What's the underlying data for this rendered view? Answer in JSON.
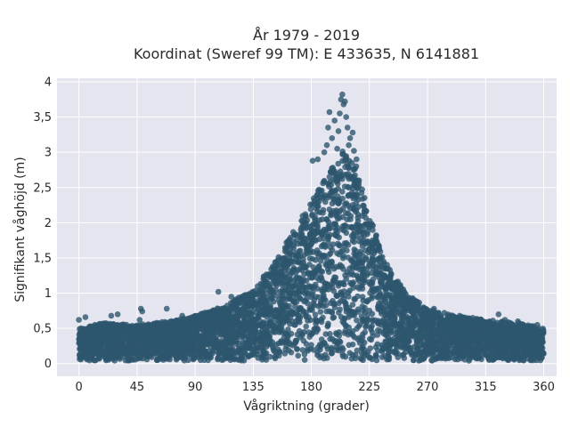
{
  "chart_data": {
    "type": "scatter",
    "title_line1": "År 1979 - 2019",
    "title_line2": "Koordinat (Sweref 99 TM): E 433635, N 6141881",
    "xlabel": "Vågriktning (grader)",
    "ylabel": "Signifikant våghöjd (m)",
    "xlim": [
      -17,
      370
    ],
    "ylim": [
      -0.18,
      4.05
    ],
    "xticks": [
      0,
      45,
      90,
      135,
      180,
      225,
      270,
      315,
      360
    ],
    "xtick_labels": [
      "0",
      "45",
      "90",
      "135",
      "180",
      "225",
      "270",
      "315",
      "360"
    ],
    "yticks": [
      0,
      0.5,
      1,
      1.5,
      2,
      2.5,
      3,
      3.5,
      4
    ],
    "ytick_labels": [
      "0",
      "0,5",
      "1",
      "1,5",
      "2",
      "2,5",
      "3",
      "3,5",
      "4"
    ],
    "grid": true,
    "colors": {
      "plot_bg": "#e5e5ef",
      "grid": "#ffffff",
      "marker": "#2d566e",
      "text": "#2a2a2a"
    },
    "envelope": {
      "x": [
        0,
        20,
        45,
        70,
        90,
        110,
        135,
        150,
        165,
        180,
        195,
        205,
        215,
        225,
        240,
        255,
        270,
        290,
        315,
        340,
        360
      ],
      "y_max": [
        0.5,
        0.58,
        0.55,
        0.6,
        0.68,
        0.8,
        1.05,
        1.4,
        1.85,
        2.3,
        2.75,
        3.05,
        2.8,
        2.1,
        1.35,
        0.98,
        0.78,
        0.68,
        0.62,
        0.58,
        0.5
      ]
    },
    "points_outliers": [
      {
        "x": 0,
        "y": 0.62
      },
      {
        "x": 5,
        "y": 0.66
      },
      {
        "x": 25,
        "y": 0.68
      },
      {
        "x": 30,
        "y": 0.7
      },
      {
        "x": 47,
        "y": 0.62
      },
      {
        "x": 48,
        "y": 0.78
      },
      {
        "x": 49,
        "y": 0.74
      },
      {
        "x": 68,
        "y": 0.78
      },
      {
        "x": 80,
        "y": 0.68
      },
      {
        "x": 108,
        "y": 1.02
      },
      {
        "x": 118,
        "y": 0.95
      },
      {
        "x": 181,
        "y": 2.88
      },
      {
        "x": 185,
        "y": 2.9
      },
      {
        "x": 190,
        "y": 3.0
      },
      {
        "x": 192,
        "y": 3.1
      },
      {
        "x": 193,
        "y": 3.35
      },
      {
        "x": 194,
        "y": 3.57
      },
      {
        "x": 196,
        "y": 3.2
      },
      {
        "x": 198,
        "y": 3.45
      },
      {
        "x": 200,
        "y": 3.05
      },
      {
        "x": 201,
        "y": 3.3
      },
      {
        "x": 202,
        "y": 3.55
      },
      {
        "x": 203,
        "y": 3.75
      },
      {
        "x": 204,
        "y": 3.82
      },
      {
        "x": 205,
        "y": 3.68
      },
      {
        "x": 206,
        "y": 3.72
      },
      {
        "x": 207,
        "y": 3.5
      },
      {
        "x": 208,
        "y": 3.35
      },
      {
        "x": 209,
        "y": 3.1
      },
      {
        "x": 210,
        "y": 3.2
      },
      {
        "x": 212,
        "y": 3.28
      },
      {
        "x": 213,
        "y": 3.02
      },
      {
        "x": 215,
        "y": 2.9
      },
      {
        "x": 217,
        "y": 2.6
      },
      {
        "x": 240,
        "y": 1.2
      },
      {
        "x": 245,
        "y": 1.1
      },
      {
        "x": 250,
        "y": 1.0
      },
      {
        "x": 260,
        "y": 0.9
      },
      {
        "x": 275,
        "y": 0.78
      },
      {
        "x": 283,
        "y": 0.72
      },
      {
        "x": 295,
        "y": 0.68
      },
      {
        "x": 305,
        "y": 0.65
      },
      {
        "x": 325,
        "y": 0.7
      },
      {
        "x": 330,
        "y": 0.62
      },
      {
        "x": 340,
        "y": 0.6
      },
      {
        "x": 355,
        "y": 0.55
      }
    ]
  }
}
